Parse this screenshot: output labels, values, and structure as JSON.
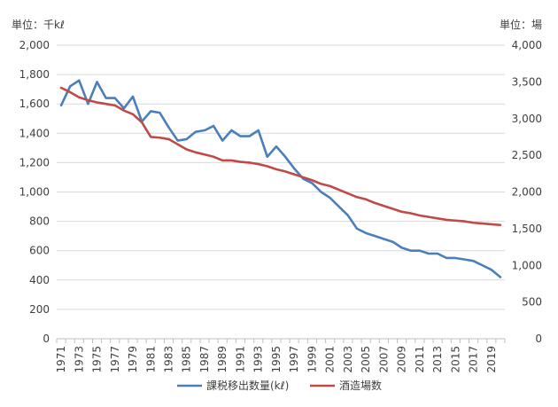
{
  "chart_data": {
    "type": "line",
    "title": "",
    "left_unit_label": "単位：千kℓ",
    "right_unit_label": "単位：場",
    "xlabel": "",
    "ylabel_left": "",
    "ylabel_right": "",
    "x": [
      1971,
      1972,
      1973,
      1974,
      1975,
      1976,
      1977,
      1978,
      1979,
      1980,
      1981,
      1982,
      1983,
      1984,
      1985,
      1986,
      1987,
      1988,
      1989,
      1990,
      1991,
      1992,
      1993,
      1994,
      1995,
      1996,
      1997,
      1998,
      1999,
      2000,
      2001,
      2002,
      2003,
      2004,
      2005,
      2006,
      2007,
      2008,
      2009,
      2010,
      2011,
      2012,
      2013,
      2014,
      2015,
      2016,
      2017,
      2018,
      2019,
      2020
    ],
    "x_tick_labels": [
      "1971",
      "1973",
      "1975",
      "1977",
      "1979",
      "1981",
      "1983",
      "1985",
      "1987",
      "1989",
      "1991",
      "1993",
      "1995",
      "1997",
      "1999",
      "2001",
      "2003",
      "2005",
      "2007",
      "2009",
      "2011",
      "2013",
      "2015",
      "2017",
      "2019"
    ],
    "y_left_lim": [
      0,
      2000
    ],
    "y_left_ticks": [
      "0",
      "200",
      "400",
      "600",
      "800",
      "1,000",
      "1,200",
      "1,400",
      "1,600",
      "1,800",
      "2,000"
    ],
    "y_right_lim": [
      0,
      4000
    ],
    "y_right_ticks": [
      "0",
      "500",
      "1,000",
      "1,500",
      "2,000",
      "2,500",
      "3,000",
      "3,500",
      "4,000"
    ],
    "grid": "horizontal",
    "legend_position": "bottom",
    "series": [
      {
        "name": "課税移出数量(kℓ)",
        "axis": "left",
        "color": "#4a7fbb",
        "values": [
          1590,
          1720,
          1760,
          1600,
          1750,
          1640,
          1640,
          1570,
          1650,
          1480,
          1550,
          1540,
          1440,
          1350,
          1360,
          1410,
          1420,
          1450,
          1350,
          1420,
          1380,
          1380,
          1420,
          1240,
          1310,
          1240,
          1160,
          1090,
          1060,
          1000,
          960,
          900,
          840,
          750,
          720,
          700,
          680,
          660,
          620,
          600,
          600,
          580,
          580,
          550,
          550,
          540,
          530,
          500,
          470,
          420
        ]
      },
      {
        "name": "酒造場数",
        "axis": "right",
        "color": "#be4b48",
        "values": [
          3420,
          3360,
          3290,
          3250,
          3220,
          3200,
          3180,
          3110,
          3060,
          2950,
          2750,
          2740,
          2720,
          2650,
          2580,
          2540,
          2510,
          2480,
          2430,
          2430,
          2410,
          2400,
          2380,
          2350,
          2310,
          2280,
          2240,
          2200,
          2160,
          2110,
          2080,
          2030,
          1980,
          1930,
          1900,
          1850,
          1810,
          1770,
          1730,
          1710,
          1680,
          1660,
          1640,
          1620,
          1610,
          1600,
          1580,
          1570,
          1560,
          1550
        ]
      }
    ]
  }
}
